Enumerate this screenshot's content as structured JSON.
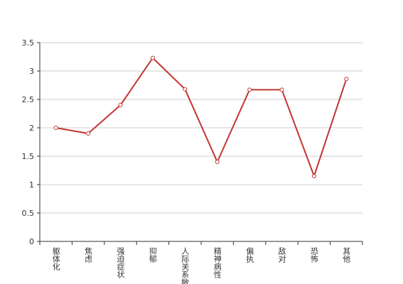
{
  "chart_data": {
    "type": "line",
    "categories": [
      "躯体化",
      "焦虑",
      "强迫症状",
      "抑郁",
      "人际关系敏感",
      "精神病性",
      "偏执",
      "敌对",
      "恐怖",
      "其他"
    ],
    "series": [
      {
        "values": [
          2.0,
          1.9,
          2.4,
          3.23,
          2.68,
          1.4,
          2.67,
          2.67,
          1.15,
          2.86
        ],
        "color": "#c23531"
      }
    ],
    "ylim": [
      0,
      3.5
    ],
    "yticks": [
      "0",
      "0.5",
      "1",
      "1.5",
      "2",
      "2.5",
      "3",
      "3.5"
    ],
    "grid": true
  }
}
